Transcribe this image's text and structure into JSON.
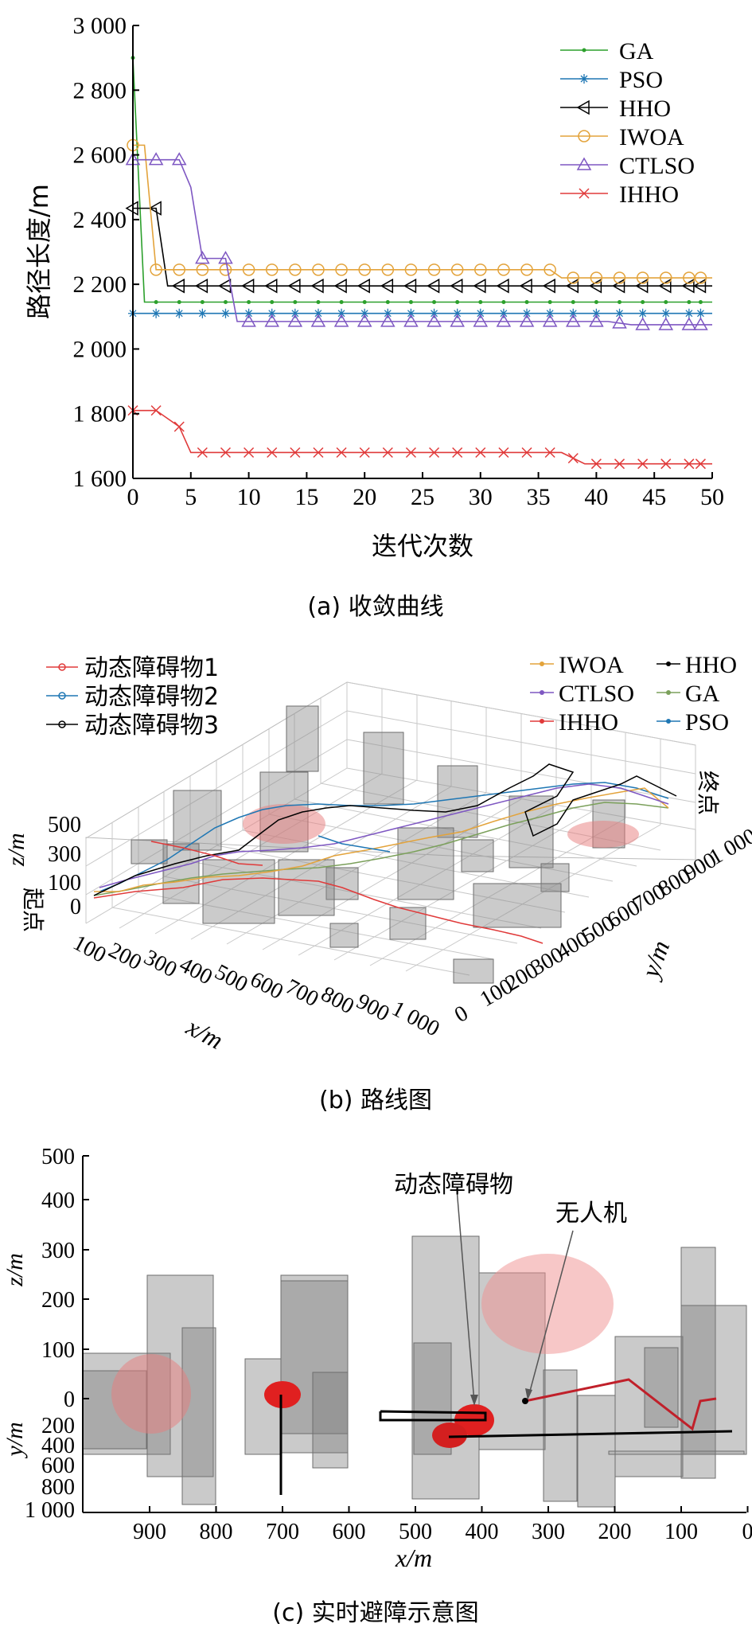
{
  "panel_a": {
    "caption": "(a) 收敛曲线",
    "ylabel": "路径长度/m",
    "xlabel": "迭代次数",
    "yticks": [
      "1 600",
      "1 800",
      "2 000",
      "2 200",
      "2 400",
      "2 600",
      "2 800",
      "3 000"
    ],
    "xticks": [
      "0",
      "5",
      "10",
      "15",
      "20",
      "25",
      "30",
      "35",
      "40",
      "45",
      "50"
    ],
    "legend": [
      "GA",
      "PSO",
      "HHO",
      "IWOA",
      "CTLSO",
      "IHHO"
    ]
  },
  "panel_b": {
    "caption": "(b) 路线图",
    "xlabel": "x/m",
    "ylabel": "y/m",
    "zlabel": "z/m",
    "start_label": "起点",
    "end_label": "终点",
    "xticks": [
      "100",
      "200",
      "300",
      "400",
      "500",
      "600",
      "700",
      "800",
      "900",
      "1 000"
    ],
    "yticks": [
      "0",
      "100",
      "200",
      "300",
      "400",
      "500",
      "600",
      "700",
      "800",
      "900",
      "1 000"
    ],
    "zticks": [
      "0",
      "100",
      "300",
      "500"
    ],
    "legend_left": [
      "动态障碍物1",
      "动态障碍物2",
      "动态障碍物3"
    ],
    "legend_right": [
      "IWOA",
      "HHO",
      "CTLSO",
      "GA",
      "IHHO",
      "PSO"
    ]
  },
  "panel_c": {
    "caption": "(c) 实时避障示意图",
    "zlabel": "z/m",
    "ylabel": "y/m",
    "xlabel": "x/m",
    "zticks": [
      "500",
      "400",
      "300",
      "200",
      "100",
      "0"
    ],
    "yticks": [
      "200",
      "400",
      "600",
      "800",
      "1 000"
    ],
    "xticks": [
      "900",
      "800",
      "700",
      "600",
      "500",
      "400",
      "300",
      "200",
      "100",
      "0"
    ],
    "annotation_obstacle": "动态障碍物",
    "annotation_uav": "无人机"
  },
  "chart_data": [
    {
      "type": "line",
      "title": "",
      "xlabel": "迭代次数",
      "ylabel": "路径长度/m",
      "xlim": [
        0,
        50
      ],
      "ylim": [
        1600,
        3000
      ],
      "series": [
        {
          "name": "GA",
          "color": "#2ca02c",
          "marker": "dot",
          "x": [
            0,
            1,
            50
          ],
          "y": [
            2900,
            2145,
            2145
          ]
        },
        {
          "name": "PSO",
          "color": "#1f77b4",
          "marker": "star",
          "x": [
            0,
            50
          ],
          "y": [
            2110,
            2110
          ]
        },
        {
          "name": "HHO",
          "color": "#000000",
          "marker": "triangle-left",
          "x": [
            0,
            2,
            3,
            50
          ],
          "y": [
            2435,
            2435,
            2195,
            2195
          ]
        },
        {
          "name": "IWOA",
          "color": "#e3a33b",
          "marker": "circle",
          "x": [
            0,
            1,
            2,
            3,
            36,
            37,
            50
          ],
          "y": [
            2630,
            2630,
            2245,
            2245,
            2245,
            2220,
            2220
          ]
        },
        {
          "name": "CTLSO",
          "color": "#7e57c2",
          "marker": "triangle-up",
          "x": [
            0,
            2,
            4,
            5,
            6,
            7,
            8,
            9,
            40,
            41,
            43,
            50
          ],
          "y": [
            2585,
            2585,
            2585,
            2500,
            2280,
            2280,
            2280,
            2085,
            2085,
            2085,
            2075,
            2075
          ]
        },
        {
          "name": "IHHO",
          "color": "#e03a3a",
          "marker": "x",
          "x": [
            0,
            2,
            4,
            5,
            37,
            39,
            50
          ],
          "y": [
            1810,
            1810,
            1760,
            1680,
            1680,
            1645,
            1645
          ]
        }
      ]
    }
  ]
}
